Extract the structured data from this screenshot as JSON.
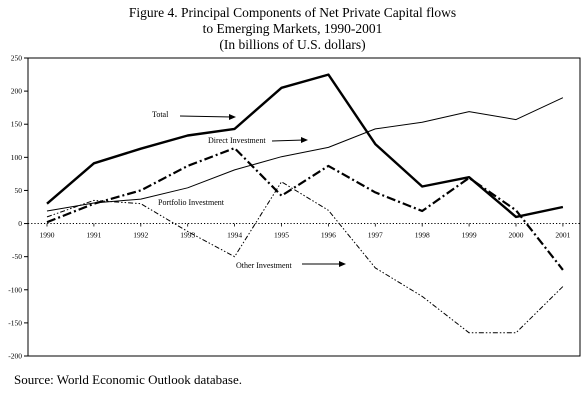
{
  "title_lines": [
    "Figure 4. Principal Components of Net Private Capital flows",
    "to Emerging Markets, 1990-2001",
    "(In billions of U.S. dollars)"
  ],
  "source": "Source:  World Economic Outlook database.",
  "chart_data": {
    "type": "line",
    "x": [
      1990,
      1991,
      1992,
      1993,
      1994,
      1995,
      1996,
      1997,
      1998,
      1999,
      2000,
      2001
    ],
    "x_tick_labels": [
      "1990",
      "1991",
      "1992",
      "1993",
      "1994",
      "1995",
      "1996",
      "1997",
      "1998",
      "1999",
      "2000",
      "2001"
    ],
    "ylim": [
      -200,
      250
    ],
    "y_ticks": [
      250,
      200,
      150,
      100,
      50,
      0,
      -50,
      -100,
      -150,
      -200
    ],
    "grid": false,
    "zero_line": "dotted",
    "series": [
      {
        "name": "Total",
        "style": "thick-solid",
        "values": [
          30,
          91,
          113,
          133,
          143,
          205,
          225,
          120,
          56,
          70,
          10,
          25
        ]
      },
      {
        "name": "Direct Investment",
        "style": "thin-solid",
        "values": [
          19,
          31,
          37,
          54,
          81,
          101,
          115,
          143,
          153,
          169,
          157,
          190
        ]
      },
      {
        "name": "Portfolio Investment",
        "style": "thick-dashdot",
        "values": [
          2,
          30,
          50,
          87,
          114,
          42,
          87,
          47,
          19,
          69,
          20,
          -70
        ]
      },
      {
        "name": "Other Investment",
        "style": "thin-dashdotdot",
        "values": [
          10,
          35,
          30,
          -12,
          -50,
          63,
          20,
          -67,
          -110,
          -165,
          -165,
          -95
        ]
      }
    ],
    "annotations": [
      {
        "text": "Total",
        "series": "Total"
      },
      {
        "text": "Direct Investment",
        "series": "Direct Investment"
      },
      {
        "text": "Portfolio Investment",
        "series": "Portfolio Investment"
      },
      {
        "text": "Other Investment",
        "series": "Other Investment"
      }
    ]
  }
}
